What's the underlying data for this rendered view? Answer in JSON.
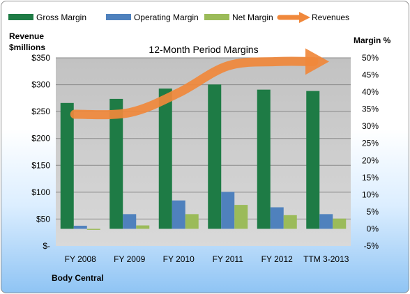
{
  "chart_data": {
    "type": "bar",
    "title": "12-Month Period Margins",
    "company": "Body Central",
    "ylabel_left": [
      "Revenue",
      "$millions"
    ],
    "ylabel_right": "Margin %",
    "categories": [
      "FY 2008",
      "FY 2009",
      "FY 2010",
      "FY 2011",
      "FY 2012",
      "TTM 3-2013"
    ],
    "left_axis": {
      "ticks": [
        "$-",
        "$50",
        "$100",
        "$150",
        "$200",
        "$250",
        "$300",
        "$350"
      ],
      "min": 0,
      "max": 350
    },
    "right_axis": {
      "ticks": [
        "-5%",
        "0%",
        "5%",
        "10%",
        "15%",
        "20%",
        "25%",
        "30%",
        "35%",
        "40%",
        "45%",
        "50%"
      ],
      "min": -5,
      "max": 50
    },
    "series": [
      {
        "name": "Gross Margin",
        "type": "bar",
        "axis": "right",
        "color": "#1e7b45",
        "values": [
          36.8,
          38.0,
          41.0,
          42.2,
          40.7,
          40.3
        ]
      },
      {
        "name": "Operating Margin",
        "type": "bar",
        "axis": "right",
        "color": "#4f81bd",
        "values": [
          0.9,
          4.3,
          8.3,
          10.8,
          6.3,
          4.3
        ]
      },
      {
        "name": "Net Margin",
        "type": "bar",
        "axis": "right",
        "color": "#9bbb59",
        "values": [
          -0.3,
          1.0,
          4.3,
          7.0,
          4.0,
          3.0
        ]
      },
      {
        "name": "Revenues",
        "type": "line-arrow",
        "axis": "left",
        "color": "#f0883b",
        "values": [
          245,
          248,
          285,
          335,
          343,
          343
        ]
      }
    ],
    "legend_position": "top",
    "grid": true
  }
}
